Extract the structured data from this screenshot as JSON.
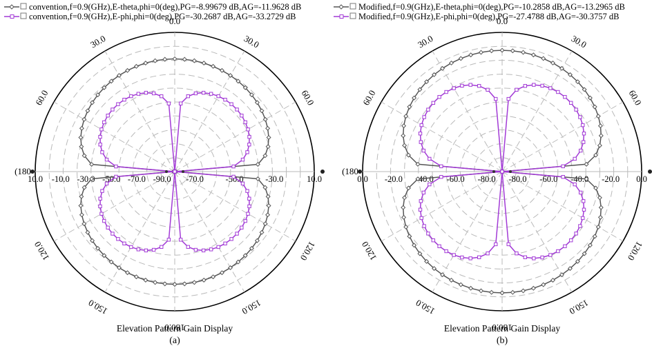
{
  "chart_data": [
    {
      "type": "polar-line",
      "caption": "(a)",
      "title": "Elevation Pattern Gain Display",
      "rlim": [
        -90,
        10
      ],
      "radial_ticks_left": [
        "10.0",
        "-10.0",
        "-30.0",
        "-50.0",
        "-70.0",
        "-90.0"
      ],
      "radial_ticks_right": [
        "-70.0",
        "-50.0",
        "-30.0",
        "10.0"
      ],
      "angle_labels": [
        {
          "deg": 0,
          "label": "0.0"
        },
        {
          "deg": 30,
          "label": "30.0"
        },
        {
          "deg": -30,
          "label": "30.0"
        },
        {
          "deg": 60,
          "label": "60.0"
        },
        {
          "deg": -60,
          "label": "60.0"
        },
        {
          "deg": 90,
          "label": ""
        },
        {
          "deg": -90,
          "label": "(180"
        },
        {
          "deg": 120,
          "label": "120.0"
        },
        {
          "deg": -120,
          "label": "120.0"
        },
        {
          "deg": 150,
          "label": "150.0"
        },
        {
          "deg": -150,
          "label": "150.0"
        },
        {
          "deg": 180,
          "label": "180.0"
        }
      ],
      "series": [
        {
          "name": "convention,f=0.9(GHz),E-theta,phi=0(deg),PG=-8.99679 dB,AG=-11.9628 dB",
          "color": "#555555",
          "marker": "diamond",
          "model": "theta",
          "peak": -8.997
        },
        {
          "name": "convention,f=0.9(GHz),E-phi,phi=0(deg),PG=-30.2687 dB,AG=-33.2729 dB",
          "color": "#a23ad6",
          "marker": "square",
          "model": "phi",
          "peak": -30.27
        }
      ]
    },
    {
      "type": "polar-line",
      "caption": "(b)",
      "title": "Elevation Pattern Gain Display",
      "rlim": [
        -80,
        0
      ],
      "radial_ticks_left": [
        "0.0",
        "-20.0",
        "-40.0",
        "-60.0",
        "-80.0"
      ],
      "radial_ticks_right": [
        "-80.0",
        "-60.0",
        "-40.0",
        "-20.0",
        "0.0"
      ],
      "angle_labels": [
        {
          "deg": 0,
          "label": "0.0"
        },
        {
          "deg": 30,
          "label": "30.0"
        },
        {
          "deg": -30,
          "label": "30.0"
        },
        {
          "deg": 60,
          "label": "60.0"
        },
        {
          "deg": -60,
          "label": "60.0"
        },
        {
          "deg": 90,
          "label": ""
        },
        {
          "deg": -90,
          "label": "(180"
        },
        {
          "deg": 120,
          "label": "120.0"
        },
        {
          "deg": -120,
          "label": "120.0"
        },
        {
          "deg": 150,
          "label": "150.0"
        },
        {
          "deg": -150,
          "label": "150.0"
        },
        {
          "deg": 180,
          "label": "180.0"
        }
      ],
      "series": [
        {
          "name": "Modified,f=0.9(GHz),E-theta,phi=0(deg),PG=-10.2858 dB,AG=-13.2965 dB",
          "color": "#555555",
          "marker": "diamond",
          "model": "theta",
          "peak": -10.29
        },
        {
          "name": "Modified,f=0.9(GHz),E-phi,phi=0(deg),PG=-27.4788 dB,AG=-30.3757 dB",
          "color": "#a23ad6",
          "marker": "square",
          "model": "phi",
          "peak": -27.48
        }
      ]
    }
  ]
}
